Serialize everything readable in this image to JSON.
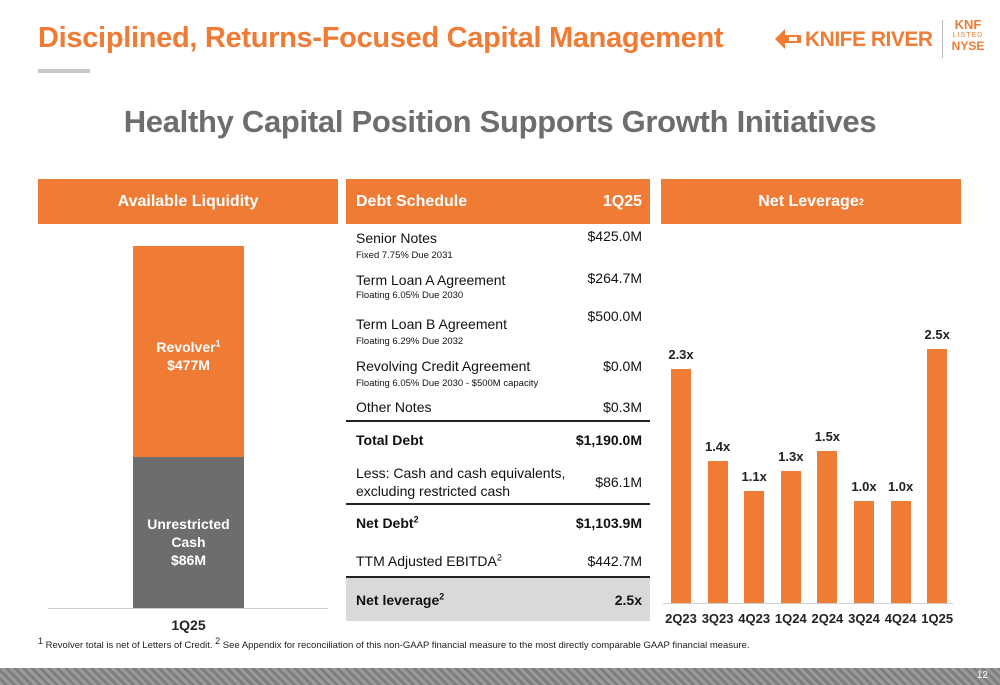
{
  "header": {
    "title": "Disciplined, Returns-Focused Capital Management",
    "logo_text": "KNIFE RIVER",
    "ticker": "KNF",
    "listed": "LISTED",
    "exchange": "NYSE"
  },
  "subtitle": "Healthy Capital Position Supports Growth Initiatives",
  "liquidity": {
    "header": "Available Liquidity",
    "revolver_label": "Revolver",
    "revolver_sup": "1",
    "revolver_value": "$477M",
    "cash_label": "Unrestricted Cash",
    "cash_value": "$86M",
    "category": "1Q25",
    "chart_data": {
      "type": "bar",
      "categories": [
        "1Q25"
      ],
      "series": [
        {
          "name": "Unrestricted Cash",
          "values": [
            86
          ]
        },
        {
          "name": "Revolver",
          "values": [
            477
          ]
        }
      ],
      "stacked": true,
      "colors": {
        "Revolver": "#f07b35",
        "Unrestricted Cash": "#6d6d6d"
      }
    }
  },
  "debt": {
    "header_label": "Debt Schedule",
    "header_period": "1Q25",
    "rows": [
      {
        "label": "Senior Notes",
        "sub": "Fixed 7.75% Due 2031",
        "value": "$425.0M"
      },
      {
        "label": "Term Loan A Agreement",
        "sub": "Floating 6.05% Due 2030",
        "value": "$264.7M"
      },
      {
        "label": "Term Loan B Agreement",
        "sub": "Floating 6.29% Due 2032",
        "value": "$500.0M"
      },
      {
        "label": "Revolving Credit Agreement",
        "sub": "Floating 6.05% Due 2030 - $500M capacity",
        "value": "$0.0M"
      },
      {
        "label": "Other Notes",
        "value": "$0.3M"
      }
    ],
    "total_debt": {
      "label": "Total Debt",
      "value": "$1,190.0M"
    },
    "less_cash": {
      "label_line1": "Less: Cash and cash equivalents,",
      "label_line2": "excluding restricted cash",
      "value": "$86.1M"
    },
    "net_debt": {
      "label": "Net Debt",
      "sup": "2",
      "value": "$1,103.9M"
    },
    "ebitda": {
      "label": "TTM Adjusted EBITDA",
      "sup": "2",
      "value": "$442.7M"
    },
    "net_leverage": {
      "label": "Net leverage",
      "sup": "2",
      "value": "2.5x"
    }
  },
  "leverage": {
    "header": "Net Leverage",
    "header_sup": "2",
    "chart_data": {
      "type": "bar",
      "categories": [
        "2Q23",
        "3Q23",
        "4Q23",
        "1Q24",
        "2Q24",
        "3Q24",
        "4Q24",
        "1Q25"
      ],
      "values": [
        2.3,
        1.4,
        1.1,
        1.3,
        1.5,
        1.0,
        1.0,
        2.5
      ],
      "labels": [
        "2.3x",
        "1.4x",
        "1.1x",
        "1.3x",
        "1.5x",
        "1.0x",
        "1.0x",
        "2.5x"
      ],
      "color": "#f07b35"
    }
  },
  "footnote": {
    "sup1": "1",
    "text1": " Revolver total is net of Letters of Credit. ",
    "sup2": "2",
    "text2": " See Appendix for reconciliation of this non-GAAP financial measure to the most directly comparable GAAP financial measure."
  },
  "page_number": "12"
}
